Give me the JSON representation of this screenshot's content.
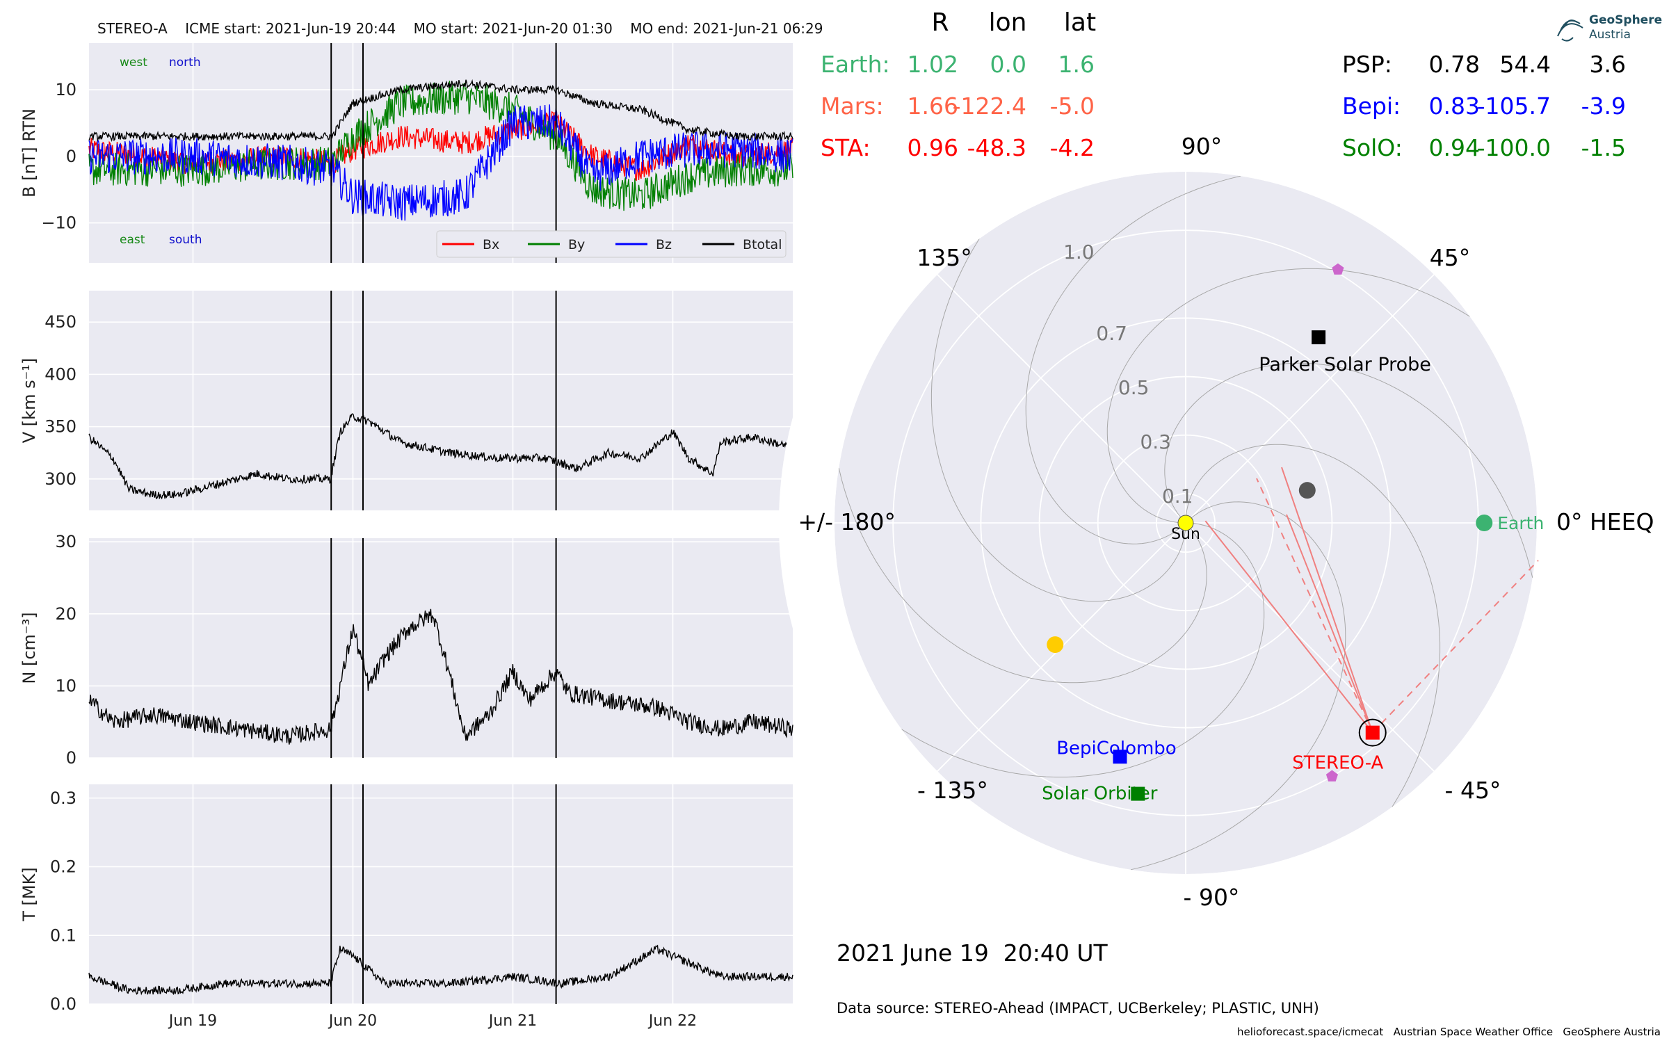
{
  "header": {
    "title": "STEREO-A    ICME start: 2021-Jun-19 20:44    MO start: 2021-Jun-20 01:30    MO end: 2021-Jun-21 06:29"
  },
  "chart_data": [
    {
      "type": "line",
      "panel": "magnetic_field",
      "ylabel": "B [nT] RTN",
      "ylim": [
        -16,
        17
      ],
      "yticks": [
        10,
        0,
        -10
      ],
      "ytick_labels": [
        "10",
        "0",
        "−10"
      ],
      "xlim_days": [
        18.35,
        22.75
      ],
      "x_unit": "days of 2021-June",
      "annotations": [
        {
          "text": "west",
          "color": "#1a8a1a"
        },
        {
          "text": "north",
          "color": "#1010cc"
        },
        {
          "text": "east",
          "color": "#1a8a1a"
        },
        {
          "text": "south",
          "color": "#1010cc"
        }
      ],
      "legend": {
        "placement": "lower-right",
        "entries": [
          "Bx",
          "By",
          "Bz",
          "Btotal"
        ]
      },
      "series": [
        {
          "name": "Bx",
          "color": "#ff0000",
          "x": [
            18.35,
            19.0,
            19.6,
            19.87,
            20.0,
            20.3,
            20.7,
            21.0,
            21.27,
            21.5,
            21.8,
            22.1,
            22.4,
            22.75
          ],
          "values": [
            1,
            -1,
            0,
            -1,
            1,
            3,
            2,
            4,
            5,
            0,
            -2,
            2,
            0,
            1
          ]
        },
        {
          "name": "By",
          "color": "#008000",
          "x": [
            18.35,
            19.0,
            19.6,
            19.87,
            20.0,
            20.3,
            20.7,
            21.0,
            21.27,
            21.5,
            21.8,
            22.1,
            22.4,
            22.75
          ],
          "values": [
            -2,
            -2,
            -1,
            -1,
            3,
            8,
            9,
            7,
            3,
            -5,
            -6,
            -3,
            -2,
            -2
          ]
        },
        {
          "name": "Bz",
          "color": "#0000ff",
          "x": [
            18.35,
            19.0,
            19.6,
            19.87,
            20.0,
            20.3,
            20.7,
            21.0,
            21.27,
            21.5,
            21.8,
            22.1,
            22.4,
            22.75
          ],
          "values": [
            0,
            0,
            -1,
            -2,
            -6,
            -7,
            -6,
            5,
            5,
            -3,
            0,
            1,
            1,
            0
          ]
        },
        {
          "name": "Btotal",
          "color": "#000000",
          "x": [
            18.35,
            19.0,
            19.6,
            19.87,
            20.0,
            20.3,
            20.7,
            21.0,
            21.27,
            21.5,
            21.8,
            22.1,
            22.4,
            22.75
          ],
          "values": [
            3,
            3,
            3,
            3,
            8,
            10,
            11,
            10,
            10,
            8,
            7,
            4,
            3,
            3
          ]
        }
      ],
      "vlines_days": [
        19.864,
        20.063,
        21.27
      ]
    },
    {
      "type": "line",
      "panel": "speed",
      "ylabel": "V [km s⁻¹]",
      "ylim": [
        270,
        480
      ],
      "yticks": [
        450,
        400,
        350,
        300
      ],
      "ytick_labels": [
        "450",
        "400",
        "350",
        "300"
      ],
      "xlim_days": [
        18.35,
        22.75
      ],
      "series": [
        {
          "name": "",
          "color": "#000000",
          "x": [
            18.35,
            18.5,
            18.6,
            18.75,
            18.9,
            19.15,
            19.4,
            19.6,
            19.86,
            19.92,
            20.0,
            20.1,
            20.3,
            20.6,
            20.9,
            21.2,
            21.4,
            21.6,
            21.8,
            22.0,
            22.1,
            22.25,
            22.3,
            22.5,
            22.75
          ],
          "values": [
            340,
            320,
            290,
            285,
            285,
            295,
            305,
            300,
            300,
            345,
            360,
            355,
            335,
            325,
            320,
            320,
            310,
            325,
            320,
            345,
            320,
            305,
            335,
            340,
            330
          ]
        }
      ],
      "vlines_days": [
        19.864,
        20.063,
        21.27
      ]
    },
    {
      "type": "line",
      "panel": "density",
      "ylabel": "N [cm⁻³]",
      "ylim": [
        0,
        30.5
      ],
      "yticks": [
        30,
        20,
        10,
        0
      ],
      "ytick_labels": [
        "30",
        "20",
        "10",
        "0"
      ],
      "xlim_days": [
        18.35,
        22.75
      ],
      "series": [
        {
          "name": "",
          "color": "#000000",
          "x": [
            18.35,
            18.5,
            18.75,
            19.0,
            19.3,
            19.6,
            19.86,
            19.92,
            20.0,
            20.1,
            20.2,
            20.35,
            20.5,
            20.6,
            20.7,
            20.85,
            21.0,
            21.1,
            21.27,
            21.35,
            21.6,
            21.9,
            22.1,
            22.3,
            22.5,
            22.75
          ],
          "values": [
            8,
            5,
            6,
            5,
            4,
            3,
            4,
            10,
            18,
            10,
            14,
            18,
            20,
            12,
            3,
            6,
            12,
            8,
            12,
            9,
            8,
            7,
            5,
            4,
            5,
            4
          ]
        }
      ],
      "vlines_days": [
        19.864,
        20.063,
        21.27
      ]
    },
    {
      "type": "line",
      "panel": "temperature",
      "ylabel": "T [MK]",
      "ylim": [
        0,
        0.32
      ],
      "yticks": [
        0.3,
        0.2,
        0.1,
        0.0
      ],
      "ytick_labels": [
        "0.3",
        "0.2",
        "0.1",
        "0.0"
      ],
      "x_tick_labels": [
        "Jun 19",
        "Jun 20",
        "Jun 21",
        "Jun 22"
      ],
      "x_ticks_days": [
        19,
        20,
        21,
        22
      ],
      "xlim_days": [
        18.35,
        22.75
      ],
      "series": [
        {
          "name": "",
          "color": "#000000",
          "x": [
            18.35,
            18.6,
            18.9,
            19.2,
            19.5,
            19.86,
            19.92,
            20.0,
            20.2,
            20.6,
            21.0,
            21.3,
            21.6,
            21.9,
            22.0,
            22.3,
            22.5,
            22.75
          ],
          "values": [
            0.04,
            0.02,
            0.02,
            0.03,
            0.03,
            0.03,
            0.08,
            0.07,
            0.03,
            0.03,
            0.04,
            0.03,
            0.04,
            0.08,
            0.07,
            0.04,
            0.04,
            0.04
          ]
        }
      ],
      "vlines_days": [
        19.864,
        20.063,
        21.27
      ]
    },
    {
      "type": "scatter",
      "panel": "heliospheric_position_polar",
      "radial_ticks": [
        {
          "value": 0.1,
          "label": "0.1"
        },
        {
          "value": 0.3,
          "label": "0.3"
        },
        {
          "value": 0.5,
          "label": "0.5"
        },
        {
          "value": 0.7,
          "label": "0.7"
        },
        {
          "value": 1.0,
          "label": "1.0"
        }
      ],
      "r_max": 1.2,
      "angle_labels": [
        {
          "deg": 0,
          "label": "0° HEEQ"
        },
        {
          "deg": 45,
          "label": "45°"
        },
        {
          "deg": 90,
          "label": "90°"
        },
        {
          "deg": 135,
          "label": "135°"
        },
        {
          "deg": 180,
          "label": "+/- 180°"
        },
        {
          "deg": -135,
          "label": "- 135°"
        },
        {
          "deg": -90,
          "label": "- 90°"
        },
        {
          "deg": -45,
          "label": "- 45°"
        }
      ],
      "points": [
        {
          "label": "Sun",
          "r": 0.0,
          "lon": 0,
          "color": "#ffff00",
          "marker": "circle"
        },
        {
          "label": "Earth",
          "r": 1.02,
          "lon": 0.0,
          "color": "#3cb371",
          "marker": "circle"
        },
        {
          "label": "",
          "r": 0.43,
          "lon": 15,
          "color": "#555555",
          "marker": "circle"
        },
        {
          "label": "",
          "r": 0.61,
          "lon": -137,
          "color": "#ffcc00",
          "marker": "circle"
        },
        {
          "label": "STEREO-A",
          "r": 0.96,
          "lon": -48.3,
          "color": "#ff0000",
          "marker": "square"
        },
        {
          "label": "Parker Solar Probe",
          "r": 0.78,
          "lon": 54.4,
          "color": "#000000",
          "marker": "square"
        },
        {
          "label": "BepiColombo",
          "r": 0.83,
          "lon": -105.7,
          "color": "#0000ff",
          "marker": "square"
        },
        {
          "label": "Solar Orbiter",
          "r": 0.94,
          "lon": -100.0,
          "color": "#008000",
          "marker": "square"
        },
        {
          "label": "",
          "r": 1.01,
          "lon": 59,
          "color": "#cc66cc",
          "marker": "pentagon"
        },
        {
          "label": "",
          "r": 1.0,
          "lon": -60,
          "color": "#cc66cc",
          "marker": "pentagon"
        }
      ]
    }
  ],
  "positions_table": {
    "headers": [
      "R",
      "lon",
      "lat"
    ],
    "left_rows": [
      {
        "name": "Earth:",
        "r": "1.02",
        "lon": "0.0",
        "lat": "1.6",
        "color": "#3cb371"
      },
      {
        "name": "Mars:",
        "r": "1.66",
        "lon": "-122.4",
        "lat": "-5.0",
        "color": "#ff6347"
      },
      {
        "name": "STA:",
        "r": "0.96",
        "lon": "-48.3",
        "lat": "-4.2",
        "color": "#ff0000"
      }
    ],
    "right_rows": [
      {
        "name": "PSP:",
        "r": "0.78",
        "lon": "54.4",
        "lat": "3.6",
        "color": "#000000"
      },
      {
        "name": "Bepi:",
        "r": "0.83",
        "lon": "-105.7",
        "lat": "-3.9",
        "color": "#0000ff"
      },
      {
        "name": "SolO:",
        "r": "0.94",
        "lon": "-100.0",
        "lat": "-1.5",
        "color": "#008000"
      }
    ]
  },
  "footer": {
    "date": "2021 June 19  20:40 UT",
    "source": "Data source: STEREO-Ahead (IMPACT, UCBerkeley; PLASTIC, UNH)",
    "credits": "helioforecast.space/icmecat   Austrian Space Weather Office   GeoSphere Austria"
  },
  "logo": {
    "line1": "GeoSphere",
    "line2": "Austria",
    "color": "#1f4e5f"
  }
}
